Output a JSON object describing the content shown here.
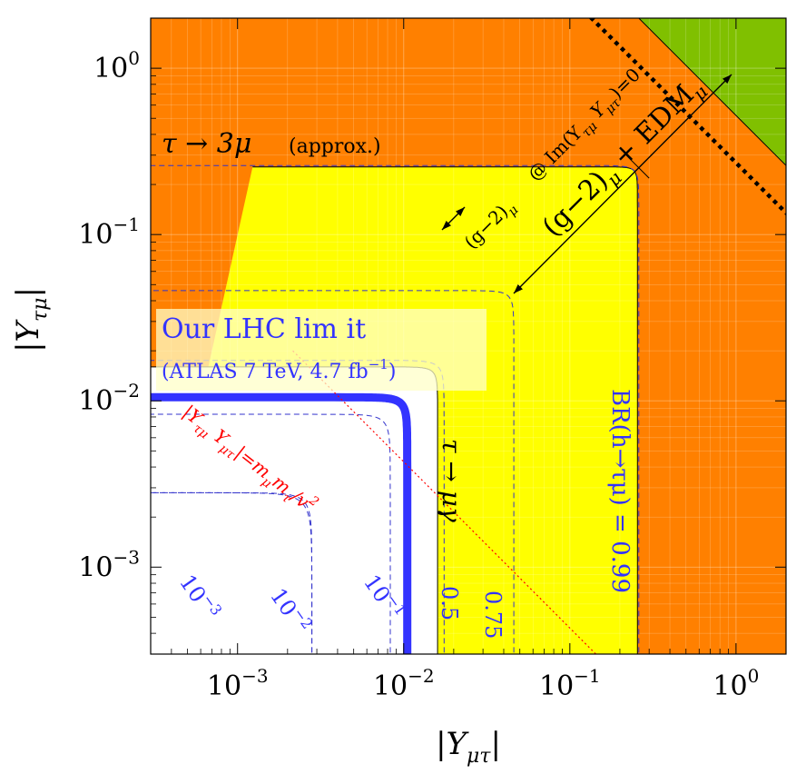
{
  "chart_data": {
    "type": "area",
    "title": "",
    "xlabel": "|Y_μτ|",
    "ylabel": "|Y_τμ|",
    "xscale": "log",
    "yscale": "log",
    "xlim": [
      0.0003,
      2.0
    ],
    "ylim": [
      0.0003,
      2.0
    ],
    "x_ticks": [
      {
        "value": 0.001,
        "base": "10",
        "exp": "−3"
      },
      {
        "value": 0.01,
        "base": "10",
        "exp": "−2"
      },
      {
        "value": 0.1,
        "base": "10",
        "exp": "−1"
      },
      {
        "value": 1.0,
        "base": "10",
        "exp": "0"
      }
    ],
    "y_ticks": [
      {
        "value": 0.001,
        "base": "10",
        "exp": "−3"
      },
      {
        "value": 0.01,
        "base": "10",
        "exp": "−2"
      },
      {
        "value": 0.1,
        "base": "10",
        "exp": "−1"
      },
      {
        "value": 1.0,
        "base": "10",
        "exp": "0"
      }
    ],
    "grid": true,
    "regions": [
      {
        "name": "tau_to_3mu",
        "color": "#ff8000",
        "bound_y": 0.26,
        "bound_x": 0.27
      },
      {
        "name": "g-2_EDM",
        "color": "#80c000",
        "product_bound": 0.52
      },
      {
        "name": "tau_to_mugamma",
        "color": "#ffff00",
        "bound": 0.016
      },
      {
        "name": "g-2_only",
        "color": "#80ff00",
        "product_bound": 0.0655
      }
    ],
    "contours": {
      "LHC_limit": {
        "color": "#3333ff",
        "value": 0.0105
      },
      "tau_mugamma_boundary": {
        "value": 0.016
      },
      "tau_3mu_boundary": {
        "value": 0.255
      },
      "BR_dashed": [
        {
          "label": "10",
          "exp": "−3",
          "value": 0.0028,
          "x": 0.0006,
          "y": 0.0009
        },
        {
          "label": "10",
          "exp": "−2",
          "value": 0.0028,
          "x": 0.0034,
          "y": 0.0011
        },
        {
          "label": "10",
          "exp": "−1",
          "value": 0.0083,
          "x": 0.009,
          "y": 0.001
        },
        {
          "label": "0.5",
          "value": 0.0175,
          "x": 0.022,
          "y": 0.00062
        },
        {
          "label": "0.75",
          "value": 0.046,
          "x": 0.044,
          "y": 0.00072
        },
        {
          "label": "0.99",
          "value": 0.26
        }
      ],
      "naturalness_line": {
        "product": 4.3e-05,
        "color": "#ff0000"
      },
      "g2_ImYY0_line": {
        "product": 0.27
      }
    },
    "annotations": {
      "tau3mu": "τ → 3μ",
      "approx": "(approx.)",
      "g2_edm_left": "(g−2)",
      "g2_edm_mu": "μ",
      "g2_edm_right": "+ EDM",
      "g2_edm_sub": "μ",
      "g2_small": "(g−2)",
      "g2_small_sub": "μ",
      "im_label": "@ Im(Y",
      "im_sub1": "τμ",
      "im_mid": "Y",
      "im_sub2": "μτ",
      "im_end": ")=0",
      "tau_mugamma": "τ → μγ",
      "br_label": "BR(h→τμ) = 0.99",
      "lhc_line1": "Our LHC lim it",
      "lhc_line2": "(ATLAS 7 TeV, 4.7 fb",
      "lhc_exp": "−1",
      "lhc_end": ")",
      "nat_pre": "|Y",
      "nat_s1": "τμ",
      "nat_mid": "Y",
      "nat_s2": "μτ",
      "nat_eq": "|=m",
      "nat_s3": "μ",
      "nat_m": "m",
      "nat_s4": "τ",
      "nat_v": "/v",
      "nat_exp": "2"
    },
    "colors": {
      "orange": "#ff8000",
      "dark_green": "#80c000",
      "yellow": "#ffff00",
      "light_green": "#80ff00",
      "blue": "#3333ff",
      "red": "#ff0000"
    }
  }
}
